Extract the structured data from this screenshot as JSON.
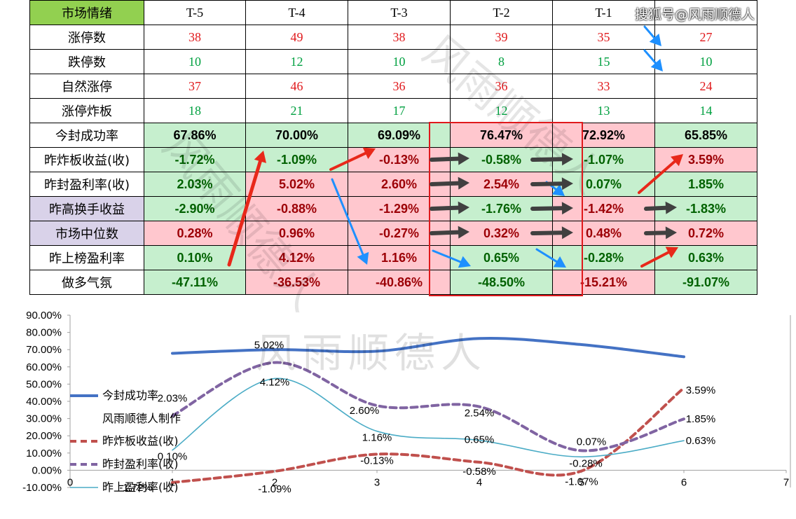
{
  "table": {
    "corner": "市场情绪",
    "columns": [
      "T-5",
      "T-4",
      "T-3",
      "T-2",
      "T-1",
      ""
    ],
    "rows": [
      {
        "label": "涨停数",
        "values": [
          "38",
          "49",
          "38",
          "39",
          "35",
          "27"
        ]
      },
      {
        "label": "跌停数",
        "values": [
          "10",
          "12",
          "10",
          "8",
          "15",
          "10"
        ]
      },
      {
        "label": "自然涨停",
        "values": [
          "37",
          "46",
          "36",
          "36",
          "33",
          "24"
        ]
      },
      {
        "label": "涨停炸板",
        "values": [
          "18",
          "21",
          "17",
          "12",
          "13",
          "14"
        ]
      },
      {
        "label": "今封成功率",
        "values": [
          "67.86%",
          "70.00%",
          "69.09%",
          "76.47%",
          "72.92%",
          "65.85%"
        ]
      },
      {
        "label": "昨炸板收益(收)",
        "values": [
          "-1.72%",
          "-1.09%",
          "-0.13%",
          "-0.58%",
          "-1.07%",
          "3.59%"
        ]
      },
      {
        "label": "昨封盈利率(收)",
        "values": [
          "2.03%",
          "5.02%",
          "2.60%",
          "2.54%",
          "0.07%",
          "1.85%"
        ]
      },
      {
        "label": "昨高换手收益",
        "values": [
          "-2.90%",
          "-0.88%",
          "-1.29%",
          "-1.76%",
          "-1.42%",
          "-1.83%"
        ]
      },
      {
        "label": "市场中位数",
        "values": [
          "0.28%",
          "0.96%",
          "-0.27%",
          "0.32%",
          "0.48%",
          "0.72%"
        ]
      },
      {
        "label": "昨上榜盈利率",
        "values": [
          "0.10%",
          "4.12%",
          "1.16%",
          "0.65%",
          "-0.28%",
          "0.63%"
        ]
      },
      {
        "label": "做多气氛",
        "values": [
          "-47.11%",
          "-36.53%",
          "-40.86%",
          "-48.50%",
          "-15.21%",
          "-91.07%"
        ]
      }
    ]
  },
  "source_label": "搜狐号@风雨顺德人",
  "watermark": "风雨顺德人",
  "colors": {
    "green_fill": "#c6efce",
    "red_fill": "#ffc7ce",
    "purple_fill": "#d9d2e9",
    "header_green": "#92d050",
    "highlight_box": "#e0191c",
    "arrow_red": "#e8281a",
    "arrow_blue": "#1e90ff",
    "arrow_dark": "#404040"
  },
  "chart_data": {
    "type": "line",
    "x": [
      1,
      2,
      3,
      4,
      5,
      6
    ],
    "xlim": [
      0,
      7
    ],
    "x_ticks": [
      "0",
      "1",
      "2",
      "3",
      "4",
      "5",
      "6",
      "7"
    ],
    "ylim": [
      -10,
      90
    ],
    "y_ticks": [
      "-10.00%",
      "0.00%",
      "10.00%",
      "20.00%",
      "30.00%",
      "40.00%",
      "50.00%",
      "60.00%",
      "70.00%",
      "80.00%",
      "90.00%"
    ],
    "series": [
      {
        "name": "今封成功率",
        "values": [
          67.86,
          70.0,
          69.09,
          76.47,
          72.92,
          65.85
        ],
        "color": "#4472c4",
        "style": "solid-thick",
        "axis": "left"
      },
      {
        "name": "昨炸板收益(收)",
        "values": [
          -1.72,
          -1.09,
          -0.13,
          -0.58,
          -1.07,
          3.59
        ],
        "color": "#c0504d",
        "style": "dashed",
        "axis": "right",
        "labels": [
          "-1.72%",
          "-1.09%",
          "-0.13%",
          "-0.58%",
          "-1.07%",
          "3.59%"
        ]
      },
      {
        "name": "昨封盈利率(收)",
        "values": [
          2.03,
          5.02,
          2.6,
          2.54,
          0.07,
          1.85
        ],
        "color": "#8064a2",
        "style": "dashed",
        "axis": "right",
        "labels": [
          "2.03%",
          "5.02%",
          "2.60%",
          "2.54%",
          "0.07%",
          "1.85%"
        ]
      },
      {
        "name": "昨上盈利率(收)",
        "values": [
          0.1,
          4.12,
          1.16,
          0.65,
          -0.28,
          0.63
        ],
        "color": "#4bacc6",
        "style": "solid-thin",
        "axis": "right",
        "labels": [
          "0.10%",
          "4.12%",
          "1.16%",
          "0.65%",
          "-0.28%",
          "0.63%"
        ]
      }
    ],
    "legend_extra": "风雨顺德人制作",
    "grid": false,
    "legend_position": "left"
  }
}
